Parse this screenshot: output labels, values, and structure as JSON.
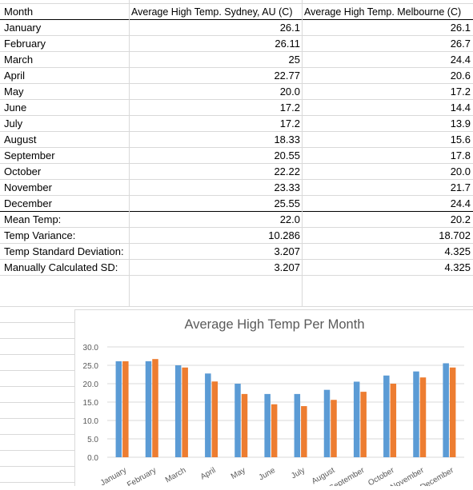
{
  "table": {
    "headers": [
      "Month",
      "Average High Temp. Sydney, AU (C)",
      "Average High Temp. Melbourne (C)"
    ],
    "rows": [
      {
        "label": "January",
        "sydney": "26.1",
        "melbourne": "26.1"
      },
      {
        "label": "February",
        "sydney": "26.11",
        "melbourne": "26.7"
      },
      {
        "label": "March",
        "sydney": "25",
        "melbourne": "24.4"
      },
      {
        "label": "April",
        "sydney": "22.77",
        "melbourne": "20.6"
      },
      {
        "label": "May",
        "sydney": "20.0",
        "melbourne": "17.2"
      },
      {
        "label": "June",
        "sydney": "17.2",
        "melbourne": "14.4"
      },
      {
        "label": "July",
        "sydney": "17.2",
        "melbourne": "13.9"
      },
      {
        "label": "August",
        "sydney": "18.33",
        "melbourne": "15.6"
      },
      {
        "label": "September",
        "sydney": "20.55",
        "melbourne": "17.8"
      },
      {
        "label": "October",
        "sydney": "22.22",
        "melbourne": "20.0"
      },
      {
        "label": "November",
        "sydney": "23.33",
        "melbourne": "21.7"
      },
      {
        "label": "December",
        "sydney": "25.55",
        "melbourne": "24.4"
      }
    ],
    "stats": [
      {
        "label": "Mean Temp:",
        "sydney": "22.0",
        "melbourne": "20.2"
      },
      {
        "label": "Temp Variance:",
        "sydney": "10.286",
        "melbourne": "18.702"
      },
      {
        "label": "Temp Standard Deviation:",
        "sydney": "3.207",
        "melbourne": "4.325"
      },
      {
        "label": "Manually Calculated SD:",
        "sydney": "3.207",
        "melbourne": "4.325"
      }
    ]
  },
  "chart_data": {
    "type": "bar",
    "title": "Average High Temp Per Month",
    "categories": [
      "January",
      "February",
      "March",
      "April",
      "May",
      "June",
      "July",
      "August",
      "September",
      "October",
      "November",
      "December"
    ],
    "series": [
      {
        "values": [
          26.1,
          26.11,
          25,
          22.77,
          20.0,
          17.2,
          17.2,
          18.33,
          20.55,
          22.22,
          23.33,
          25.55
        ],
        "color": "#5b9bd5"
      },
      {
        "values": [
          26.1,
          26.7,
          24.4,
          20.6,
          17.2,
          14.4,
          13.9,
          15.6,
          17.8,
          20.0,
          21.7,
          24.4
        ],
        "color": "#ed7d31"
      }
    ],
    "ylim": [
      0,
      30
    ],
    "yticks": [
      "0.0",
      "5.0",
      "10.0",
      "15.0",
      "20.0",
      "25.0",
      "30.0"
    ],
    "grid": true
  }
}
